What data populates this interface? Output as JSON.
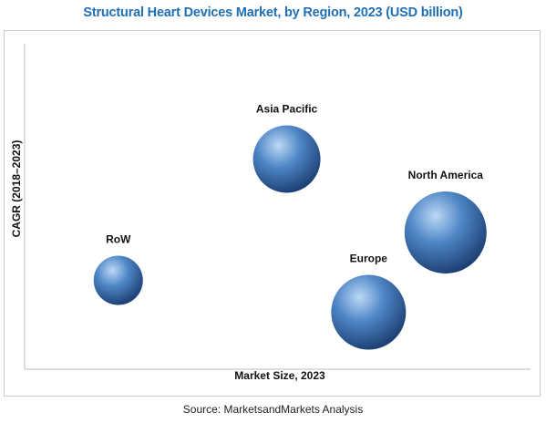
{
  "title": "Structural Heart Devices Market, by Region, 2023 (USD billion)",
  "source": "Source: MarketsandMarkets Analysis",
  "colors": {
    "title": "#1f6fb5",
    "bubble_light": "#bcd9f6",
    "bubble_mid": "#4f86c6",
    "bubble_dark": "#1c3f73"
  },
  "chart_data": {
    "type": "scatter",
    "variant": "bubble",
    "xlabel": "Market Size, 2023",
    "ylabel": "CAGR (2018–2023)",
    "xlim": [
      0,
      100
    ],
    "ylim": [
      0,
      100
    ],
    "axis_ticks": false,
    "grid": false,
    "legend": "none",
    "series": [
      {
        "points": [
          {
            "label": "Asia Pacific",
            "x": 52,
            "y": 65,
            "size": 37
          },
          {
            "label": "North America",
            "x": 85,
            "y": 42,
            "size": 45
          },
          {
            "label": "RoW",
            "x": 17,
            "y": 27,
            "size": 27
          },
          {
            "label": "Europe",
            "x": 69,
            "y": 17,
            "size": 41
          }
        ]
      }
    ]
  }
}
